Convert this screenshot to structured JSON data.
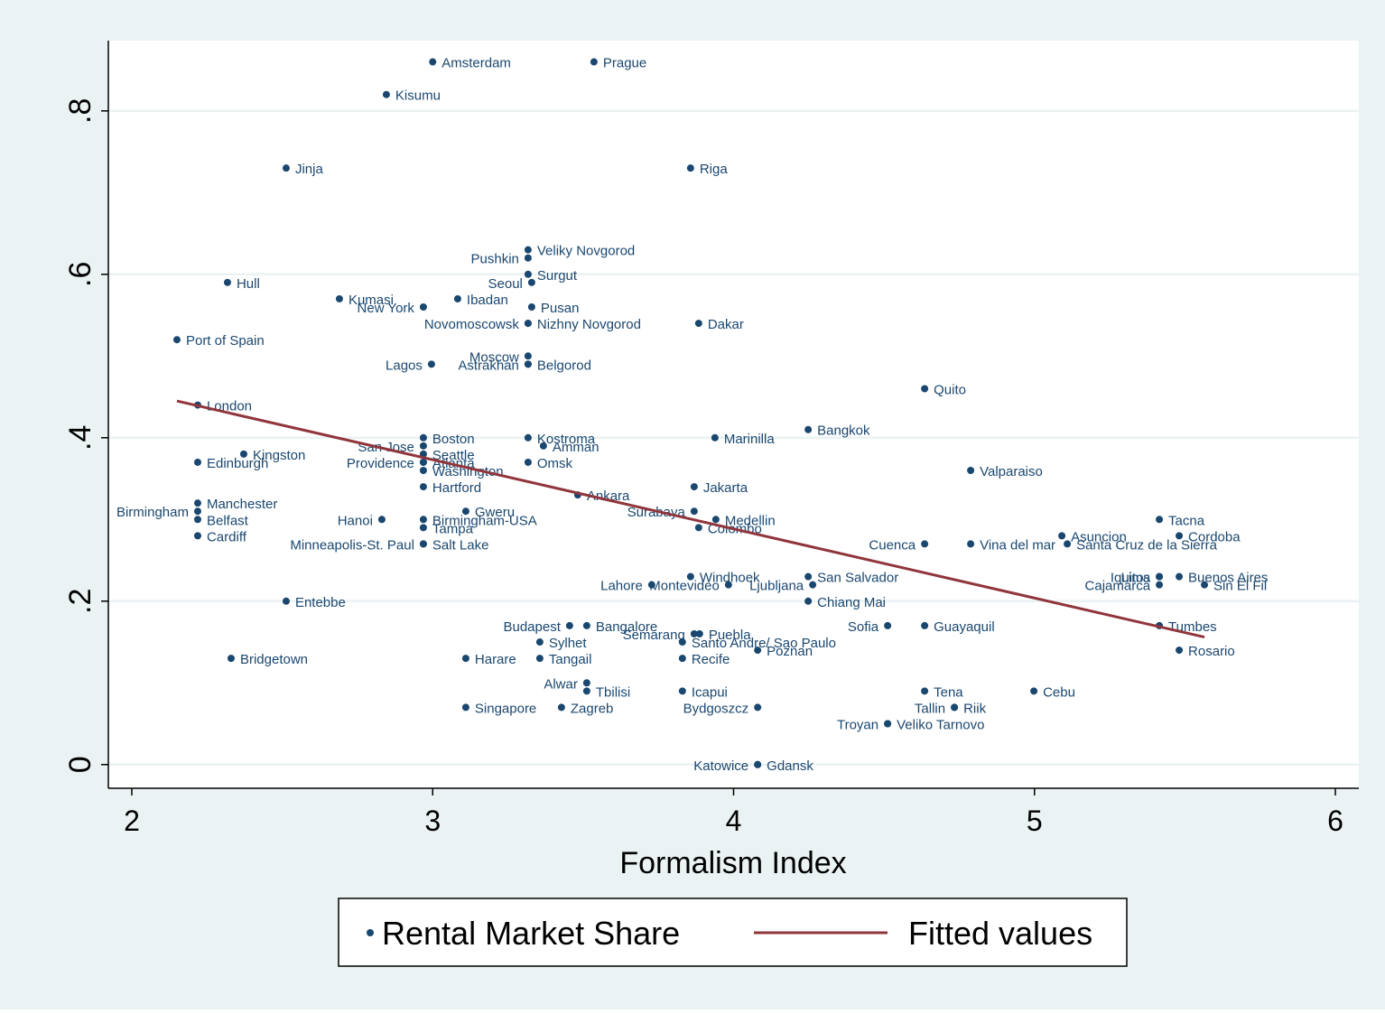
{
  "chart_data": {
    "type": "scatter",
    "x_label": "Formalism Index",
    "xlim": [
      1.922,
      6.078
    ],
    "ylim": [
      -0.029,
      0.886
    ],
    "xticks": [
      2,
      3,
      4,
      5,
      6
    ],
    "yticks": [
      0,
      {
        "value": 0.2,
        "label": ".2"
      },
      {
        "value": 0.4,
        "label": ".4"
      },
      {
        "value": 0.6,
        "label": ".6"
      },
      {
        "value": 0.8,
        "label": ".8"
      }
    ],
    "grid": true,
    "legend": "bottom",
    "series": [
      {
        "name": "Rental Market Share",
        "color": "#1a476f",
        "type": "scatter",
        "labels": [
          "Amsterdam",
          "Prague",
          "Kisumu",
          "Jinja",
          "Riga",
          "Veliky Novgorod",
          "Pushkin",
          "Surgut",
          "Seoul",
          "Hull",
          "Kumasi",
          "Ibadan",
          "New York",
          "Pusan",
          "Novomoscowsk",
          "Nizhny Novgorod",
          "Dakar",
          "Port of Spain",
          "Moscow",
          "Astrakhan",
          "Belgorod",
          "Lagos",
          "Quito",
          "London",
          "Bangkok",
          "Boston",
          "Kostroma",
          "Marinilla",
          "San Jose",
          "Amman",
          "Kingston",
          "Seattle",
          "Edinburgh",
          "Providence",
          "Atlanta",
          "Omsk",
          "Washington",
          "Valparaiso",
          "Hartford",
          "Jakarta",
          "Ankara",
          "Manchester",
          "Birmingham",
          "Gweru",
          "Surabaya",
          "Belfast",
          "Hanoi",
          "Birmingham-USA",
          "Medellin",
          "Tacna",
          "Tampa",
          "Colombo",
          "Cardiff",
          "Asuncion",
          "Cordoba",
          "Minneapolis-St. Paul",
          "Salt Lake",
          "Cuenca",
          "Vina del mar",
          "Santa Cruz de la Sierra",
          "Windhoek",
          "San Salvador",
          "Iquitos",
          "Lima",
          "Buenos Aires",
          "Lahore",
          "Montevideo",
          "Ljubljana",
          "Cajamarca",
          "Sin El Fil",
          "Entebbe",
          "Chiang Mai",
          "Budapest",
          "Bangalore",
          "Sofia",
          "Guayaquil",
          "Tumbes",
          "Semarang",
          "Puebla",
          "Santo Andre/ Sao Paulo",
          "Sylhet",
          "Rosario",
          "Poznan",
          "Bridgetown",
          "Harare",
          "Tangail",
          "Recife",
          "Alwar",
          "Tbilisi",
          "Icapui",
          "Tena",
          "Cebu",
          "Singapore",
          "Zagreb",
          "Bydgoszcz",
          "Tallin",
          "Riik",
          "Troyan",
          "Veliko Tarnovo",
          "Katowice",
          "Gdansk"
        ],
        "x": [
          3.0,
          3.536,
          2.846,
          2.513,
          3.857,
          3.317,
          3.317,
          3.317,
          3.329,
          2.318,
          2.69,
          3.083,
          2.969,
          3.329,
          3.317,
          3.317,
          3.884,
          2.15,
          3.317,
          3.317,
          3.317,
          2.996,
          4.635,
          2.219,
          4.248,
          2.969,
          3.317,
          3.938,
          2.969,
          3.368,
          2.372,
          2.969,
          2.219,
          2.969,
          2.969,
          3.317,
          2.969,
          4.788,
          2.969,
          3.869,
          3.482,
          2.219,
          2.219,
          3.11,
          3.869,
          2.219,
          2.831,
          2.969,
          3.941,
          5.415,
          2.969,
          3.884,
          2.219,
          5.091,
          5.481,
          2.969,
          2.969,
          4.635,
          4.788,
          5.109,
          3.857,
          4.248,
          5.415,
          5.415,
          5.481,
          3.728,
          3.983,
          4.263,
          5.415,
          5.565,
          2.513,
          4.248,
          3.455,
          3.512,
          4.512,
          4.635,
          5.415,
          3.869,
          3.887,
          3.83,
          3.356,
          5.481,
          4.08,
          2.33,
          3.11,
          3.356,
          3.83,
          3.512,
          3.512,
          3.83,
          4.635,
          4.998,
          3.11,
          3.428,
          4.08,
          4.734,
          4.734,
          4.512,
          4.512,
          4.08,
          4.08
        ],
        "values": [
          0.86,
          0.86,
          0.82,
          0.73,
          0.73,
          0.63,
          0.62,
          0.6,
          0.59,
          0.59,
          0.57,
          0.57,
          0.56,
          0.56,
          0.54,
          0.54,
          0.54,
          0.52,
          0.5,
          0.49,
          0.49,
          0.49,
          0.46,
          0.44,
          0.41,
          0.4,
          0.4,
          0.4,
          0.39,
          0.39,
          0.38,
          0.38,
          0.37,
          0.37,
          0.37,
          0.37,
          0.36,
          0.36,
          0.34,
          0.34,
          0.33,
          0.32,
          0.31,
          0.31,
          0.31,
          0.3,
          0.3,
          0.3,
          0.3,
          0.3,
          0.29,
          0.29,
          0.28,
          0.28,
          0.28,
          0.27,
          0.27,
          0.27,
          0.27,
          0.27,
          0.23,
          0.23,
          0.23,
          0.23,
          0.23,
          0.22,
          0.22,
          0.22,
          0.22,
          0.22,
          0.2,
          0.2,
          0.17,
          0.17,
          0.17,
          0.17,
          0.17,
          0.16,
          0.16,
          0.15,
          0.15,
          0.14,
          0.14,
          0.13,
          0.13,
          0.13,
          0.13,
          0.1,
          0.09,
          0.09,
          0.09,
          0.09,
          0.07,
          0.07,
          0.07,
          0.07,
          0.07,
          0.05,
          0.05,
          0,
          0
        ]
      },
      {
        "name": "Fitted values",
        "color": "#90353b",
        "type": "line",
        "x": [
          2.15,
          5.565
        ],
        "values": [
          0.445,
          0.156
        ]
      }
    ]
  }
}
